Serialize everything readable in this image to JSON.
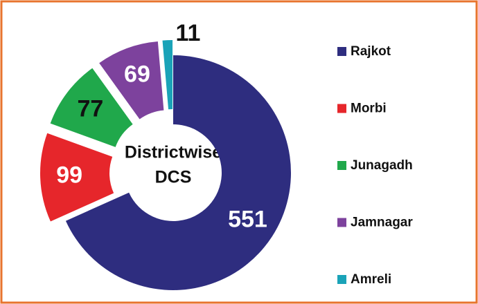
{
  "chart_data": {
    "type": "donut",
    "center_label": [
      "Districtwise",
      "DCS"
    ],
    "categories": [
      "Rajkot",
      "Morbi",
      "Junagadh",
      "Jamnagar",
      "Amreli"
    ],
    "values": [
      551,
      99,
      77,
      69,
      11
    ],
    "colors": [
      "#2e2d7f",
      "#e6262b",
      "#20a84b",
      "#7d429d",
      "#1aa3b8"
    ],
    "legend": "right"
  }
}
